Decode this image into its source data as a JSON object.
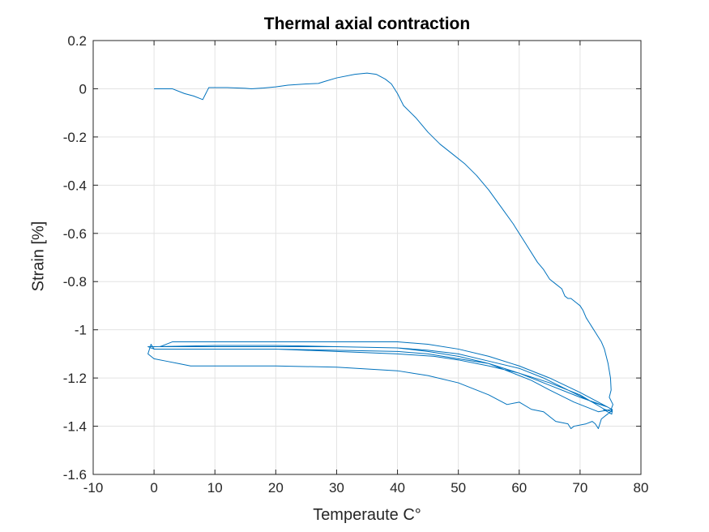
{
  "chart_data": {
    "type": "line",
    "title": "Thermal axial contraction",
    "xlabel": "Temperaute C°",
    "ylabel": "Strain [%]",
    "xlim": [
      -10,
      80
    ],
    "ylim": [
      -1.6,
      0.2
    ],
    "xticks": [
      -10,
      0,
      10,
      20,
      30,
      40,
      50,
      60,
      70,
      80
    ],
    "yticks": [
      -1.6,
      -1.4,
      -1.2,
      -1,
      -0.8,
      -0.6,
      -0.4,
      -0.2,
      0,
      0.2
    ],
    "xtick_labels": [
      "-10",
      "0",
      "10",
      "20",
      "30",
      "40",
      "50",
      "60",
      "70",
      "80"
    ],
    "ytick_labels": [
      "-1.6",
      "-1.4",
      "-1.2",
      "-1",
      "-0.8",
      "-0.6",
      "-0.4",
      "-0.2",
      "0",
      "0.2"
    ],
    "grid": true,
    "legend": "none",
    "series": [
      {
        "color": "#0072BD",
        "x": [
          0,
          3,
          5,
          6.5,
          7.5,
          8,
          8.5,
          9,
          12,
          15,
          16,
          18,
          20,
          22,
          25,
          27,
          28,
          30,
          33,
          35,
          36.5,
          38,
          39,
          40,
          41,
          43,
          45,
          47,
          49,
          51,
          53,
          55,
          57,
          59,
          61,
          63,
          64,
          65,
          66,
          67,
          67.5,
          68,
          68.5,
          69,
          69.5,
          70,
          70.5,
          71,
          71.5,
          72,
          72.5,
          73,
          73.5,
          74,
          74.3,
          74.6,
          74.8,
          75,
          75.1,
          74.8,
          75.2,
          75.4,
          75.1,
          75.3,
          74,
          70,
          65,
          60,
          55,
          50,
          45,
          40,
          30,
          20,
          10,
          5,
          1,
          3,
          5,
          10,
          20,
          30,
          40,
          45,
          50,
          55,
          60,
          65,
          70,
          74.5,
          72,
          68,
          64,
          60,
          55,
          50,
          45,
          40,
          30,
          20,
          10,
          0,
          -1,
          0,
          5,
          10,
          20,
          30,
          40,
          46,
          50,
          55,
          60,
          65,
          70,
          74.5,
          75.2,
          73,
          69,
          65,
          62,
          58,
          55,
          50,
          45,
          40,
          30,
          20,
          10,
          5,
          0,
          -0.5,
          -1,
          0,
          2,
          4,
          5,
          6,
          10,
          20,
          30,
          40,
          45,
          50,
          55,
          58,
          60,
          62,
          64,
          66,
          68,
          68.5,
          69,
          71,
          72,
          72.5,
          73,
          73.5,
          74,
          74.5,
          75,
          75.3,
          75.2,
          74.5,
          73.8
        ],
        "y": [
          0,
          0,
          -0.02,
          -0.03,
          -0.04,
          -0.045,
          -0.02,
          0.005,
          0.005,
          0.002,
          0,
          0.003,
          0.008,
          0.015,
          0.02,
          0.022,
          0.03,
          0.045,
          0.06,
          0.065,
          0.06,
          0.04,
          0.02,
          -0.02,
          -0.07,
          -0.12,
          -0.18,
          -0.23,
          -0.27,
          -0.31,
          -0.36,
          -0.42,
          -0.49,
          -0.56,
          -0.64,
          -0.72,
          -0.75,
          -0.79,
          -0.81,
          -0.83,
          -0.86,
          -0.87,
          -0.87,
          -0.88,
          -0.89,
          -0.9,
          -0.92,
          -0.95,
          -0.97,
          -0.99,
          -1.01,
          -1.03,
          -1.05,
          -1.08,
          -1.11,
          -1.14,
          -1.17,
          -1.2,
          -1.25,
          -1.28,
          -1.3,
          -1.31,
          -1.33,
          -1.34,
          -1.33,
          -1.27,
          -1.22,
          -1.18,
          -1.14,
          -1.11,
          -1.09,
          -1.075,
          -1.07,
          -1.07,
          -1.07,
          -1.07,
          -1.07,
          -1.05,
          -1.05,
          -1.05,
          -1.05,
          -1.05,
          -1.05,
          -1.06,
          -1.08,
          -1.11,
          -1.15,
          -1.2,
          -1.26,
          -1.32,
          -1.3,
          -1.25,
          -1.2,
          -1.16,
          -1.13,
          -1.1,
          -1.085,
          -1.075,
          -1.07,
          -1.065,
          -1.065,
          -1.07,
          -1.07,
          -1.08,
          -1.08,
          -1.08,
          -1.08,
          -1.09,
          -1.1,
          -1.11,
          -1.125,
          -1.15,
          -1.18,
          -1.23,
          -1.28,
          -1.32,
          -1.33,
          -1.34,
          -1.3,
          -1.25,
          -1.21,
          -1.17,
          -1.14,
          -1.12,
          -1.1,
          -1.09,
          -1.085,
          -1.08,
          -1.08,
          -1.08,
          -1.08,
          -1.06,
          -1.1,
          -1.12,
          -1.13,
          -1.14,
          -1.145,
          -1.15,
          -1.15,
          -1.15,
          -1.155,
          -1.17,
          -1.19,
          -1.22,
          -1.27,
          -1.31,
          -1.3,
          -1.33,
          -1.34,
          -1.38,
          -1.39,
          -1.41,
          -1.4,
          -1.39,
          -1.38,
          -1.39,
          -1.41,
          -1.37,
          -1.36,
          -1.35,
          -1.34,
          -1.33,
          -1.35,
          -1.34,
          -1.33
        ]
      }
    ]
  }
}
